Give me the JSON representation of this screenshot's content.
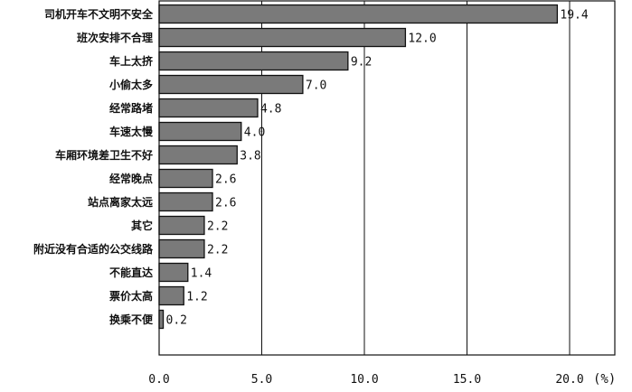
{
  "chart_data": {
    "type": "bar",
    "orientation": "horizontal",
    "categories": [
      "司机开车不文明不安全",
      "班次安排不合理",
      "车上太挤",
      "小偷太多",
      "经常路堵",
      "车速太慢",
      "车厢环境差卫生不好",
      "经常晚点",
      "站点离家太远",
      "其它",
      "附近没有合适的公交线路",
      "不能直达",
      "票价太高",
      "换乘不便"
    ],
    "values": [
      19.4,
      12.0,
      9.2,
      7.0,
      4.8,
      4.0,
      3.8,
      2.6,
      2.6,
      2.2,
      2.2,
      1.4,
      1.2,
      0.2
    ],
    "value_labels": [
      "19.4",
      "12.0",
      "9.2",
      "7.0",
      "4.8",
      "4.0",
      "3.8",
      "2.6",
      "2.6",
      "2.2",
      "2.2",
      "1.4",
      "1.2",
      "0.2"
    ],
    "xlim": [
      0,
      22
    ],
    "xticks": [
      0,
      5,
      10,
      15,
      20
    ],
    "xtick_labels": [
      "0.0",
      "5.0",
      "10.0",
      "15.0",
      "20.0"
    ],
    "unit": "(%)",
    "grid": "vertical",
    "bar_color": "#7a7a7a"
  }
}
